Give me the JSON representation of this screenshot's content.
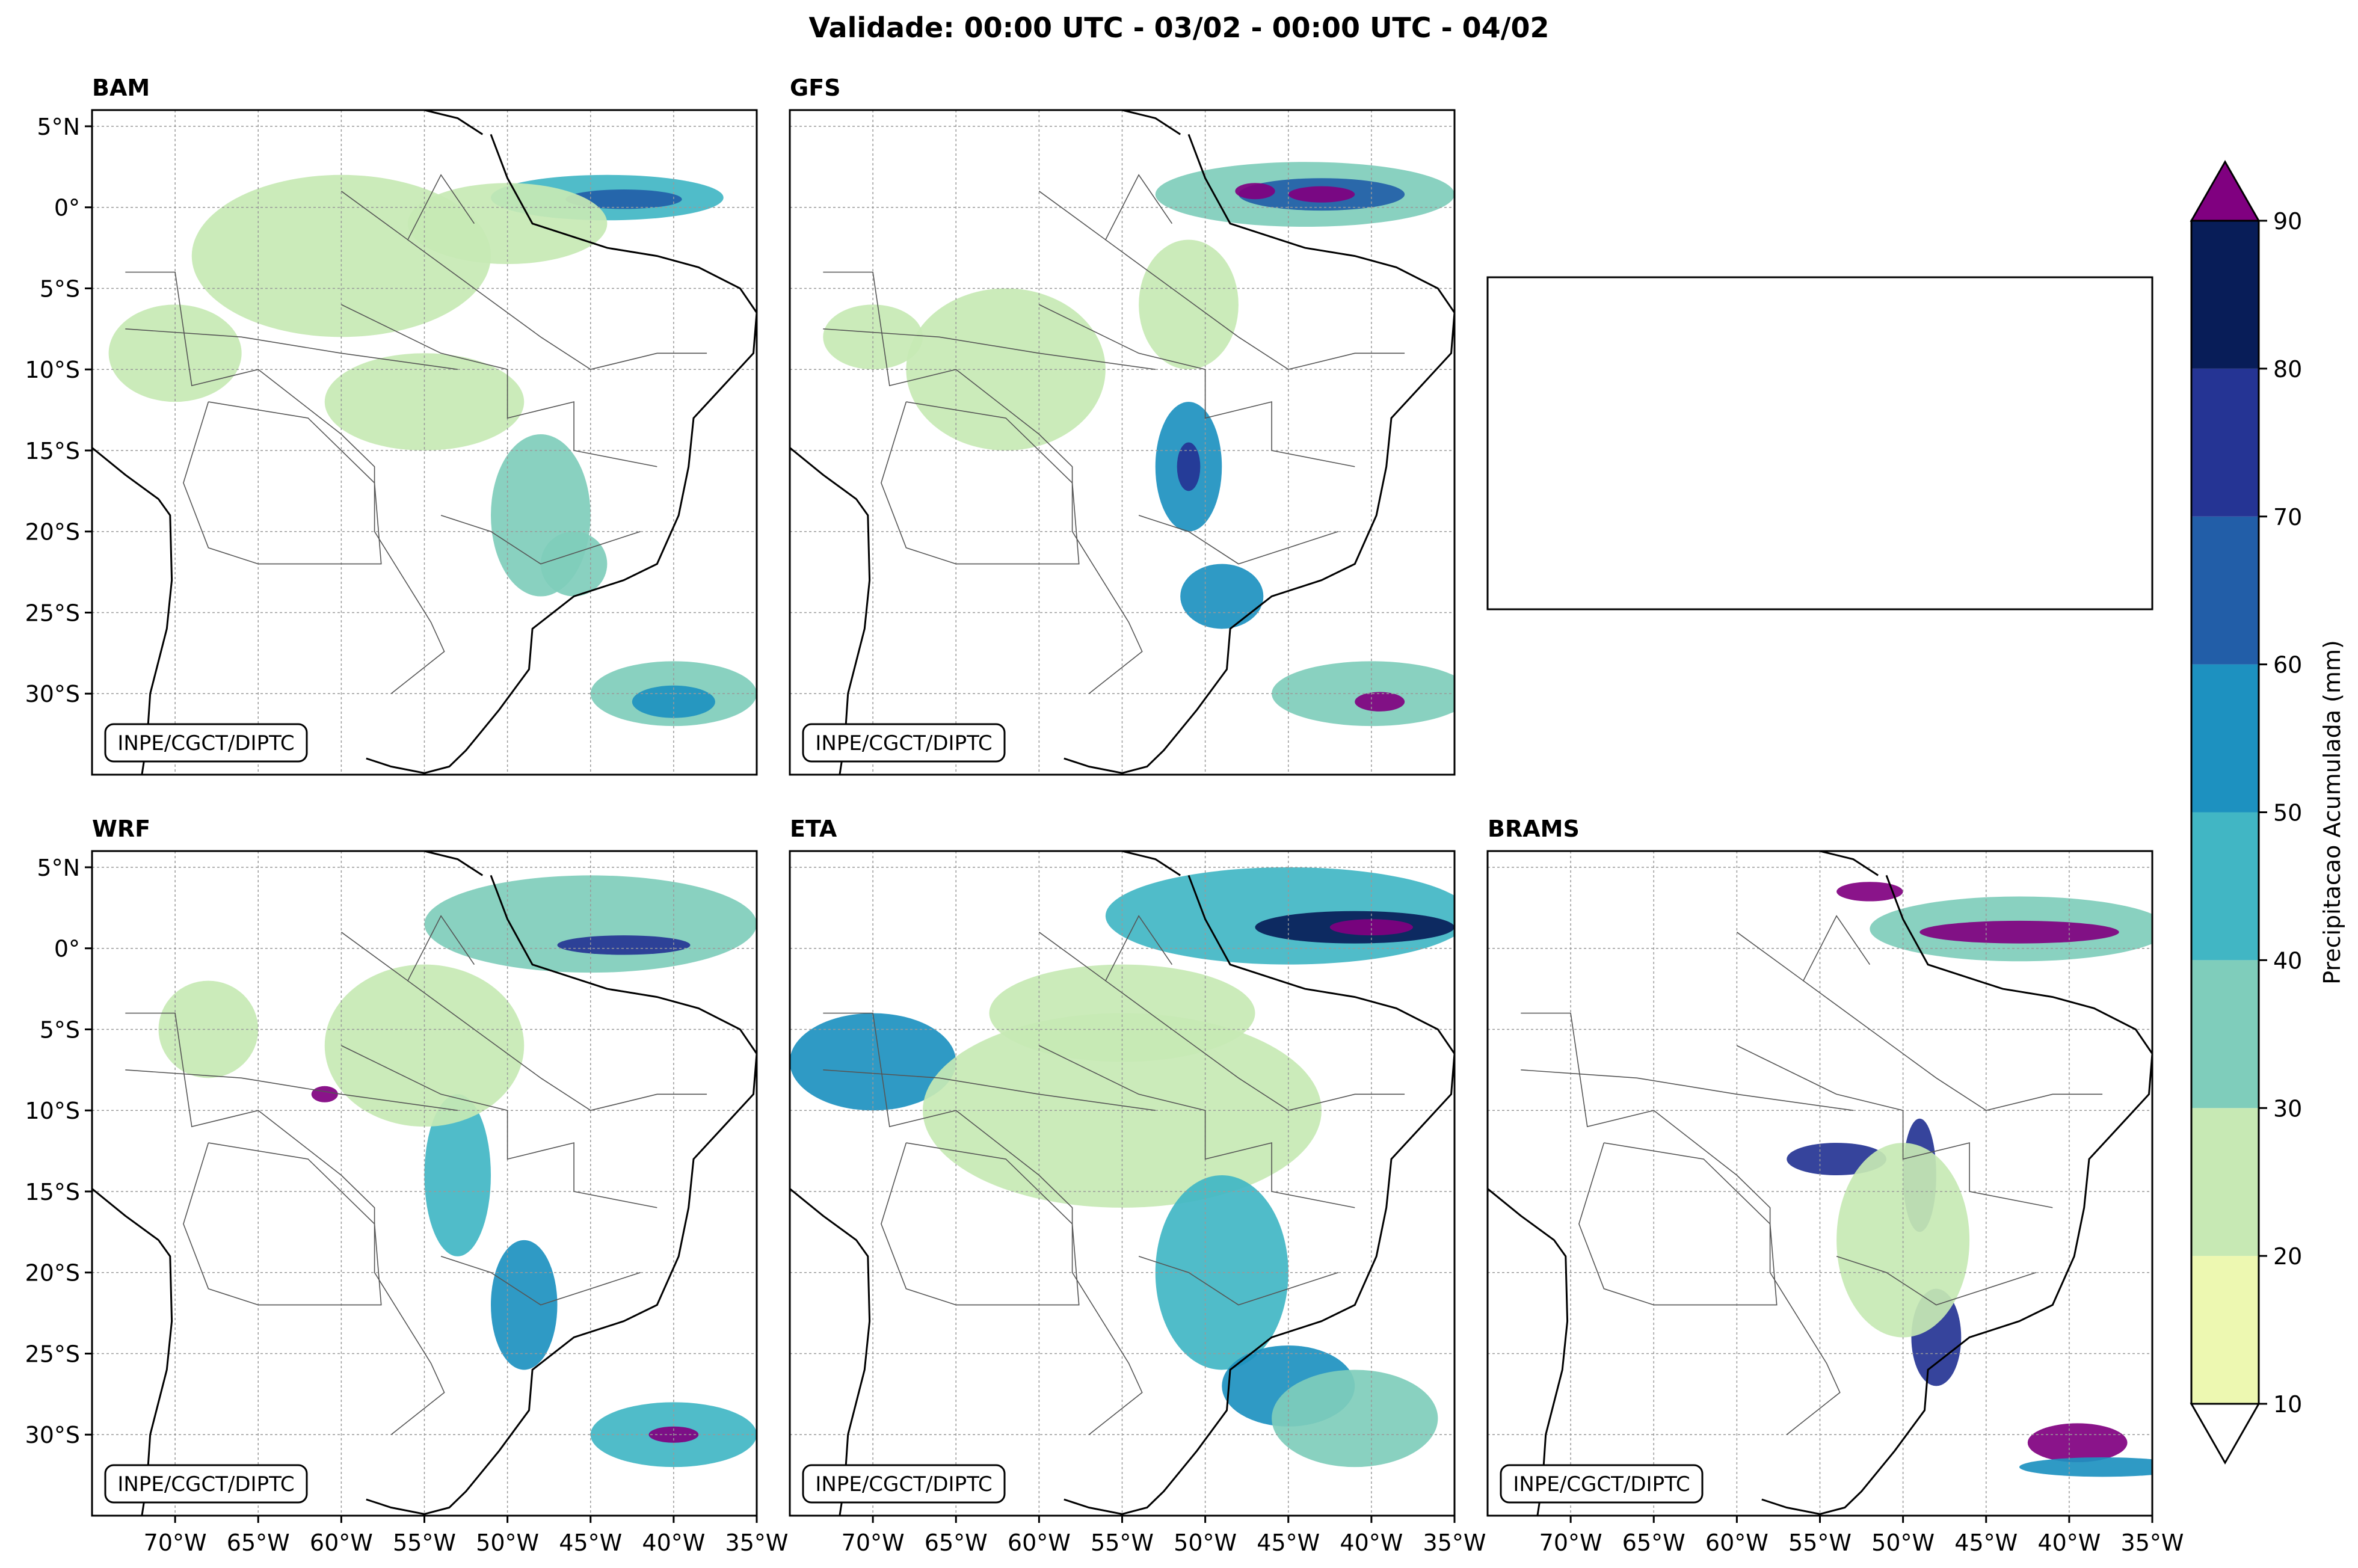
{
  "figure": {
    "title": "Validade: 00:00 UTC - 03/02 - 00:00 UTC - 04/02",
    "credit": "INPE/CGCT/DIPTC"
  },
  "map_extent": {
    "lon": [
      -75,
      -35
    ],
    "lat": [
      -35,
      6
    ]
  },
  "axes": {
    "lat_ticks": [
      {
        "value": 5,
        "label": "5°N"
      },
      {
        "value": 0,
        "label": "0°"
      },
      {
        "value": -5,
        "label": "5°S"
      },
      {
        "value": -10,
        "label": "10°S"
      },
      {
        "value": -15,
        "label": "15°S"
      },
      {
        "value": -20,
        "label": "20°S"
      },
      {
        "value": -25,
        "label": "25°S"
      },
      {
        "value": -30,
        "label": "30°S"
      }
    ],
    "lon_ticks": [
      {
        "value": -70,
        "label": "70°W"
      },
      {
        "value": -65,
        "label": "65°W"
      },
      {
        "value": -60,
        "label": "60°W"
      },
      {
        "value": -55,
        "label": "55°W"
      },
      {
        "value": -50,
        "label": "50°W"
      },
      {
        "value": -45,
        "label": "45°W"
      },
      {
        "value": -40,
        "label": "40°W"
      },
      {
        "value": -35,
        "label": "35°W"
      }
    ]
  },
  "panels": [
    {
      "id": "bam",
      "title": "BAM",
      "col": 0,
      "row": 0,
      "rain": [
        {
          "lon": -44,
          "lat": 0.6,
          "rx": 7,
          "ry": 1.4,
          "level": 3
        },
        {
          "lon": -43,
          "lat": 0.5,
          "rx": 3.5,
          "ry": 0.6,
          "level": 5
        },
        {
          "lon": -50,
          "lat": -1,
          "rx": 6,
          "ry": 2.5,
          "level": 1
        },
        {
          "lon": -60,
          "lat": -3,
          "rx": 9,
          "ry": 5,
          "level": 1
        },
        {
          "lon": -55,
          "lat": -12,
          "rx": 6,
          "ry": 3,
          "level": 1
        },
        {
          "lon": -48,
          "lat": -19,
          "rx": 3,
          "ry": 5,
          "level": 2
        },
        {
          "lon": -40,
          "lat": -30,
          "rx": 5,
          "ry": 2,
          "level": 2
        },
        {
          "lon": -40,
          "lat": -30.5,
          "rx": 2.5,
          "ry": 1,
          "level": 4
        },
        {
          "lon": -70,
          "lat": -9,
          "rx": 4,
          "ry": 3,
          "level": 1
        },
        {
          "lon": -46,
          "lat": -22,
          "rx": 2,
          "ry": 2,
          "level": 2
        }
      ]
    },
    {
      "id": "gfs",
      "title": "GFS",
      "col": 1,
      "row": 0,
      "rain": [
        {
          "lon": -44,
          "lat": 0.8,
          "rx": 9,
          "ry": 2,
          "level": 2
        },
        {
          "lon": -43,
          "lat": 0.8,
          "rx": 5,
          "ry": 1,
          "level": 5
        },
        {
          "lon": -43,
          "lat": 0.8,
          "rx": 2,
          "ry": 0.5,
          "level": 9
        },
        {
          "lon": -47,
          "lat": 1,
          "rx": 1.2,
          "ry": 0.5,
          "level": 9
        },
        {
          "lon": -51,
          "lat": -16,
          "rx": 2,
          "ry": 4,
          "level": 4
        },
        {
          "lon": -51,
          "lat": -16,
          "rx": 0.7,
          "ry": 1.5,
          "level": 6
        },
        {
          "lon": -49,
          "lat": -24,
          "rx": 2.5,
          "ry": 2,
          "level": 4
        },
        {
          "lon": -40,
          "lat": -30,
          "rx": 6,
          "ry": 2,
          "level": 2
        },
        {
          "lon": -39.5,
          "lat": -30.5,
          "rx": 1.5,
          "ry": 0.6,
          "level": 9
        },
        {
          "lon": -62,
          "lat": -10,
          "rx": 6,
          "ry": 5,
          "level": 1
        },
        {
          "lon": -70,
          "lat": -8,
          "rx": 3,
          "ry": 2,
          "level": 1
        },
        {
          "lon": -51,
          "lat": -6,
          "rx": 3,
          "ry": 4,
          "level": 1
        }
      ]
    },
    {
      "id": "wrf",
      "title": "WRF",
      "col": 0,
      "row": 1,
      "rain": [
        {
          "lon": -45,
          "lat": 1.5,
          "rx": 10,
          "ry": 3,
          "level": 2
        },
        {
          "lon": -43,
          "lat": 0.2,
          "rx": 4,
          "ry": 0.6,
          "level": 6
        },
        {
          "lon": -53,
          "lat": -14,
          "rx": 2,
          "ry": 5,
          "level": 3
        },
        {
          "lon": -49,
          "lat": -22,
          "rx": 2,
          "ry": 4,
          "level": 4
        },
        {
          "lon": -40,
          "lat": -30,
          "rx": 5,
          "ry": 2,
          "level": 3
        },
        {
          "lon": -40,
          "lat": -30,
          "rx": 1.5,
          "ry": 0.5,
          "level": 9
        },
        {
          "lon": -61,
          "lat": -9,
          "rx": 0.8,
          "ry": 0.5,
          "level": 9
        },
        {
          "lon": -55,
          "lat": -6,
          "rx": 6,
          "ry": 5,
          "level": 1
        },
        {
          "lon": -68,
          "lat": -5,
          "rx": 3,
          "ry": 3,
          "level": 1
        }
      ]
    },
    {
      "id": "eta",
      "title": "ETA",
      "col": 1,
      "row": 1,
      "rain": [
        {
          "lon": -45,
          "lat": 2,
          "rx": 11,
          "ry": 3,
          "level": 3
        },
        {
          "lon": -41,
          "lat": 1.3,
          "rx": 6,
          "ry": 1,
          "level": 7
        },
        {
          "lon": -40,
          "lat": 1.3,
          "rx": 2.5,
          "ry": 0.5,
          "level": 9
        },
        {
          "lon": -70,
          "lat": -7,
          "rx": 5,
          "ry": 3,
          "level": 4
        },
        {
          "lon": -55,
          "lat": -10,
          "rx": 12,
          "ry": 6,
          "level": 1
        },
        {
          "lon": -49,
          "lat": -20,
          "rx": 4,
          "ry": 6,
          "level": 3
        },
        {
          "lon": -45,
          "lat": -27,
          "rx": 4,
          "ry": 2.5,
          "level": 4
        },
        {
          "lon": -41,
          "lat": -29,
          "rx": 5,
          "ry": 3,
          "level": 2
        },
        {
          "lon": -55,
          "lat": -4,
          "rx": 8,
          "ry": 3,
          "level": 1
        }
      ]
    },
    {
      "id": "brams",
      "title": "BRAMS",
      "col": 2,
      "row": 1,
      "rain": [
        {
          "lon": -43,
          "lat": 1.2,
          "rx": 9,
          "ry": 2,
          "level": 2
        },
        {
          "lon": -43,
          "lat": 1,
          "rx": 6,
          "ry": 0.7,
          "level": 9
        },
        {
          "lon": -52,
          "lat": 3.5,
          "rx": 2,
          "ry": 0.6,
          "level": 9
        },
        {
          "lon": -54,
          "lat": -13,
          "rx": 3,
          "ry": 1,
          "level": 6
        },
        {
          "lon": -49,
          "lat": -14,
          "rx": 1,
          "ry": 3.5,
          "level": 6
        },
        {
          "lon": -48,
          "lat": -24,
          "rx": 1.5,
          "ry": 3,
          "level": 6
        },
        {
          "lon": -39.5,
          "lat": -30.5,
          "rx": 3,
          "ry": 1.2,
          "level": 9
        },
        {
          "lon": -38,
          "lat": -32,
          "rx": 5,
          "ry": 0.6,
          "level": 4
        },
        {
          "lon": -50,
          "lat": -18,
          "rx": 4,
          "ry": 6,
          "level": 1
        }
      ]
    }
  ],
  "colorbar": {
    "label": "Precipitacao Acumulada (mm)",
    "ticks": [
      "10",
      "20",
      "30",
      "40",
      "50",
      "60",
      "70",
      "80",
      "90"
    ],
    "colors": [
      "#edf8b1",
      "#c7e9b4",
      "#7fcdbb",
      "#41b6c4",
      "#1d91c0",
      "#225ea8",
      "#253494",
      "#081d58"
    ],
    "extend_over_color": "#800080",
    "extend_under_color": "#ffffff"
  }
}
